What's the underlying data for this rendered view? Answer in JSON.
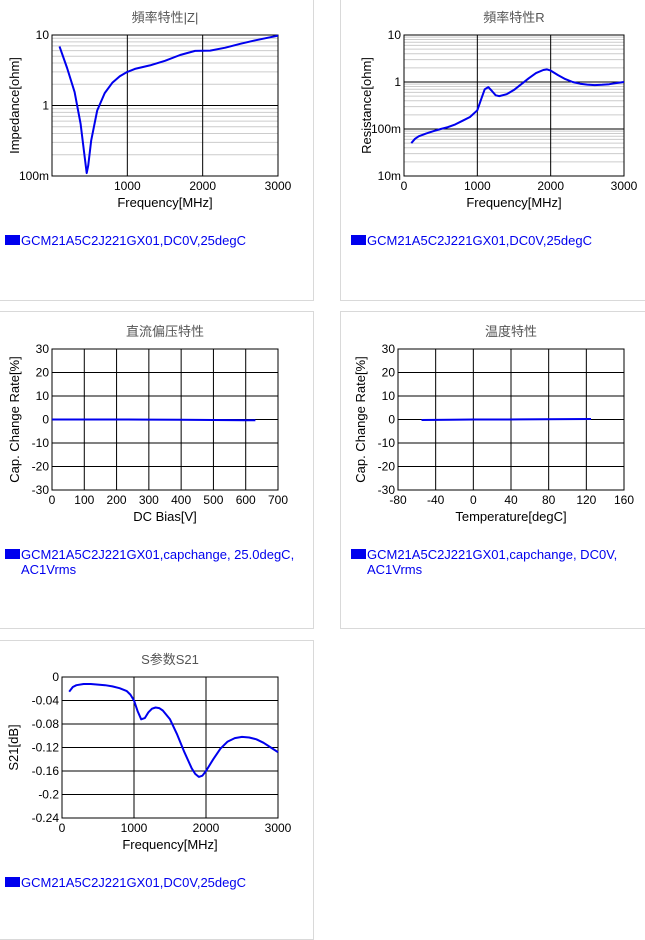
{
  "colors": {
    "series": "#0000ee",
    "frame": "#000000",
    "major_grid": "#000000",
    "minor_grid": "#cccccc",
    "title": "#555555",
    "panel_border": "#d9d9d9"
  },
  "charts": [
    {
      "title": "頻率特性|Z|",
      "legend_label": "GCM21A5C2J221GX01,DC0V,25degC",
      "xlabel": "Frequency[MHz]",
      "ylabel": "Impedance[ohm]",
      "xticks": [
        "1000",
        "2000",
        "3000"
      ],
      "yticks": [
        "100m",
        "1",
        "10"
      ]
    },
    {
      "title": "頻率特性R",
      "legend_label": "GCM21A5C2J221GX01,DC0V,25degC",
      "xlabel": "Frequency[MHz]",
      "ylabel": "Resistance[ohm]",
      "xticks": [
        "0",
        "1000",
        "2000",
        "3000"
      ],
      "yticks": [
        "10m",
        "100m",
        "1",
        "10"
      ]
    },
    {
      "title": "直流偏压特性",
      "legend_label": "GCM21A5C2J221GX01,capchange, 25.0degC, AC1Vrms",
      "xlabel": "DC Bias[V]",
      "ylabel": "Cap. Change Rate[%]",
      "xticks": [
        "0",
        "100",
        "200",
        "300",
        "400",
        "500",
        "600",
        "700"
      ],
      "yticks": [
        "-30",
        "-20",
        "-10",
        "0",
        "10",
        "20",
        "30"
      ]
    },
    {
      "title": "温度特性",
      "legend_label": "GCM21A5C2J221GX01,capchange, DC0V, AC1Vrms",
      "xlabel": "Temperature[degC]",
      "ylabel": "Cap. Change Rate[%]",
      "xticks": [
        "-80",
        "-40",
        "0",
        "40",
        "80",
        "120",
        "160"
      ],
      "yticks": [
        "-30",
        "-20",
        "-10",
        "0",
        "10",
        "20",
        "30"
      ]
    },
    {
      "title": "S参数S21",
      "legend_label": "GCM21A5C2J221GX01,DC0V,25degC",
      "xlabel": "Frequency[MHz]",
      "ylabel": "S21[dB]",
      "xticks": [
        "0",
        "1000",
        "2000",
        "3000"
      ],
      "yticks": [
        "-0.24",
        "-0.2",
        "-0.16",
        "-0.12",
        "-0.08",
        "-0.04",
        "0"
      ]
    }
  ],
  "chart_data": [
    {
      "type": "line",
      "title": "頻率特性|Z|",
      "xlabel": "Frequency[MHz]",
      "ylabel": "Impedance[ohm]",
      "xlim": [
        0,
        3000
      ],
      "ylim": [
        0.1,
        10
      ],
      "yscale": "log",
      "grid": true,
      "series": [
        {
          "name": "GCM21A5C2J221GX01,DC0V,25degC",
          "x": [
            100,
            200,
            300,
            380,
            430,
            460,
            480,
            520,
            600,
            700,
            800,
            900,
            1000,
            1100,
            1200,
            1300,
            1500,
            1700,
            1900,
            2100,
            2300,
            2500,
            2700,
            2900,
            3000
          ],
          "y": [
            6.9,
            3.4,
            1.55,
            0.55,
            0.2,
            0.11,
            0.14,
            0.32,
            0.85,
            1.5,
            2.1,
            2.6,
            3.0,
            3.3,
            3.5,
            3.7,
            4.3,
            5.2,
            5.95,
            6.0,
            6.6,
            7.5,
            8.4,
            9.3,
            9.8
          ]
        }
      ]
    },
    {
      "type": "line",
      "title": "頻率特性R",
      "xlabel": "Frequency[MHz]",
      "ylabel": "Resistance[ohm]",
      "xlim": [
        0,
        3000
      ],
      "ylim": [
        0.01,
        10
      ],
      "yscale": "log",
      "grid": true,
      "series": [
        {
          "name": "GCM21A5C2J221GX01,DC0V,25degC",
          "x": [
            100,
            150,
            200,
            300,
            400,
            500,
            600,
            700,
            800,
            900,
            1000,
            1050,
            1100,
            1150,
            1200,
            1250,
            1300,
            1400,
            1500,
            1600,
            1700,
            1800,
            1900,
            1950,
            2000,
            2100,
            2200,
            2300,
            2400,
            2500,
            2600,
            2700,
            2800,
            2900,
            3000
          ],
          "y": [
            0.05,
            0.062,
            0.07,
            0.08,
            0.09,
            0.1,
            0.11,
            0.125,
            0.15,
            0.18,
            0.25,
            0.42,
            0.7,
            0.78,
            0.64,
            0.52,
            0.5,
            0.55,
            0.68,
            0.9,
            1.2,
            1.55,
            1.8,
            1.85,
            1.75,
            1.4,
            1.15,
            1.0,
            0.92,
            0.88,
            0.86,
            0.87,
            0.9,
            0.95,
            1.0
          ]
        }
      ]
    },
    {
      "type": "line",
      "title": "直流偏压特性",
      "xlabel": "DC Bias[V]",
      "ylabel": "Cap. Change Rate[%]",
      "xlim": [
        0,
        700
      ],
      "ylim": [
        -30,
        30
      ],
      "grid": true,
      "series": [
        {
          "name": "GCM21A5C2J221GX01,capchange, 25.0degC, AC1Vrms",
          "x": [
            0,
            100,
            200,
            300,
            400,
            500,
            600,
            630
          ],
          "y": [
            0,
            0,
            0,
            -0.05,
            -0.1,
            -0.2,
            -0.3,
            -0.3
          ]
        }
      ]
    },
    {
      "type": "line",
      "title": "温度特性",
      "xlabel": "Temperature[degC]",
      "ylabel": "Cap. Change Rate[%]",
      "xlim": [
        -80,
        160
      ],
      "ylim": [
        -30,
        30
      ],
      "grid": true,
      "series": [
        {
          "name": "GCM21A5C2J221GX01,capchange, DC0V, AC1Vrms",
          "x": [
            -55,
            -25,
            0,
            25,
            50,
            75,
            100,
            125
          ],
          "y": [
            -0.2,
            -0.1,
            0,
            0,
            0.05,
            0.1,
            0.15,
            0.2
          ]
        }
      ]
    },
    {
      "type": "line",
      "title": "S参数S21",
      "xlabel": "Frequency[MHz]",
      "ylabel": "S21[dB]",
      "xlim": [
        0,
        3000
      ],
      "ylim": [
        -0.24,
        0
      ],
      "grid": true,
      "series": [
        {
          "name": "GCM21A5C2J221GX01,DC0V,25degC",
          "x": [
            100,
            150,
            200,
            300,
            400,
            500,
            600,
            700,
            800,
            900,
            950,
            1000,
            1050,
            1100,
            1150,
            1200,
            1250,
            1300,
            1350,
            1400,
            1500,
            1600,
            1700,
            1800,
            1850,
            1900,
            1950,
            2000,
            2100,
            2200,
            2300,
            2400,
            2500,
            2600,
            2700,
            2800,
            2900,
            3000
          ],
          "y": [
            -0.025,
            -0.017,
            -0.014,
            -0.012,
            -0.012,
            -0.013,
            -0.014,
            -0.016,
            -0.019,
            -0.024,
            -0.03,
            -0.04,
            -0.058,
            -0.072,
            -0.07,
            -0.06,
            -0.054,
            -0.052,
            -0.053,
            -0.057,
            -0.072,
            -0.098,
            -0.128,
            -0.155,
            -0.165,
            -0.17,
            -0.168,
            -0.16,
            -0.14,
            -0.122,
            -0.11,
            -0.104,
            -0.102,
            -0.103,
            -0.106,
            -0.112,
            -0.12,
            -0.128
          ]
        }
      ]
    }
  ]
}
